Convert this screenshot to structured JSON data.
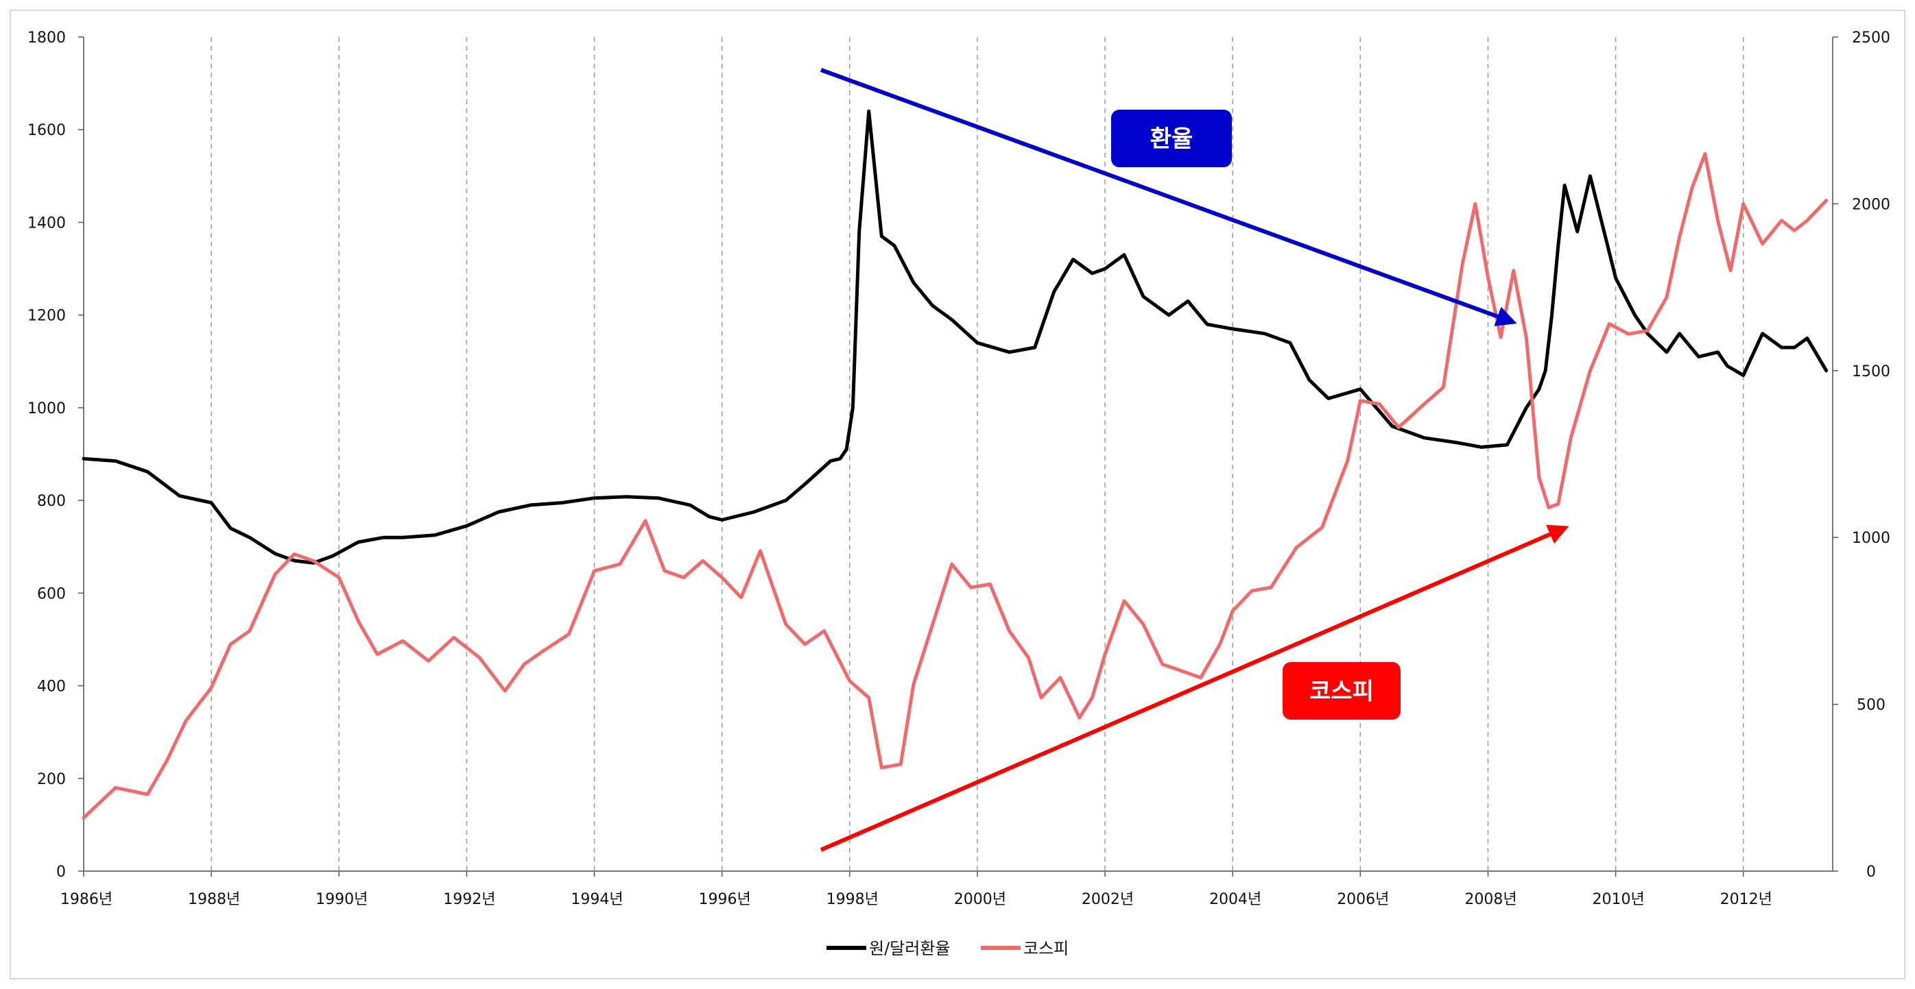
{
  "chart_data": {
    "type": "line",
    "title": "",
    "x_range": [
      1986,
      2013.4
    ],
    "x_ticks": [
      "1986년",
      "1988년",
      "1990년",
      "1992년",
      "1994년",
      "1996년",
      "1998년",
      "2000년",
      "2002년",
      "2004년",
      "2006년",
      "2008년",
      "2010년",
      "2012년"
    ],
    "y_left": {
      "range": [
        0,
        1800
      ],
      "ticks": [
        "0",
        "200",
        "400",
        "600",
        "800",
        "1000",
        "1200",
        "1400",
        "1600",
        "1800"
      ]
    },
    "y_right": {
      "range": [
        0,
        2500
      ],
      "ticks": [
        "0",
        "500",
        "1000",
        "1500",
        "2000",
        "2500"
      ]
    },
    "grid": "vertical-dashed",
    "legend_position": "bottom",
    "series": [
      {
        "name": "원/달러환율",
        "axis": "left",
        "color": "#000000",
        "x": [
          1986.0,
          1986.5,
          1987.0,
          1987.5,
          1988.0,
          1988.3,
          1988.6,
          1989.0,
          1989.3,
          1989.6,
          1989.9,
          1990.3,
          1990.7,
          1991.0,
          1991.5,
          1992.0,
          1992.5,
          1993.0,
          1993.5,
          1994.0,
          1994.5,
          1995.0,
          1995.5,
          1995.8,
          1996.0,
          1996.5,
          1997.0,
          1997.3,
          1997.5,
          1997.7,
          1997.85,
          1997.95,
          1998.05,
          1998.15,
          1998.3,
          1998.5,
          1998.7,
          1999.0,
          1999.3,
          1999.6,
          2000.0,
          2000.5,
          2000.9,
          2001.2,
          2001.5,
          2001.8,
          2002.0,
          2002.3,
          2002.6,
          2003.0,
          2003.3,
          2003.6,
          2004.0,
          2004.5,
          2004.9,
          2005.2,
          2005.5,
          2006.0,
          2006.5,
          2007.0,
          2007.5,
          2007.9,
          2008.3,
          2008.6,
          2008.8,
          2008.9,
          2009.0,
          2009.1,
          2009.2,
          2009.4,
          2009.6,
          2010.0,
          2010.3,
          2010.5,
          2010.8,
          2011.0,
          2011.3,
          2011.6,
          2011.75,
          2012.0,
          2012.3,
          2012.6,
          2012.8,
          2013.0,
          2013.3
        ],
        "y": [
          890,
          885,
          862,
          810,
          795,
          740,
          720,
          685,
          670,
          665,
          680,
          710,
          720,
          720,
          725,
          745,
          775,
          790,
          795,
          805,
          808,
          805,
          790,
          765,
          758,
          775,
          800,
          835,
          860,
          885,
          890,
          910,
          1000,
          1380,
          1640,
          1370,
          1350,
          1270,
          1220,
          1190,
          1140,
          1120,
          1130,
          1250,
          1320,
          1290,
          1300,
          1330,
          1240,
          1200,
          1230,
          1180,
          1170,
          1160,
          1140,
          1060,
          1020,
          1040,
          960,
          935,
          925,
          915,
          920,
          1000,
          1040,
          1080,
          1200,
          1350,
          1480,
          1380,
          1500,
          1280,
          1200,
          1160,
          1120,
          1160,
          1110,
          1120,
          1090,
          1070,
          1160,
          1130,
          1130,
          1150,
          1080
        ]
      },
      {
        "name": "코스피",
        "axis": "right",
        "color": "#ef6b6b",
        "x": [
          1986.0,
          1986.5,
          1987.0,
          1987.3,
          1987.6,
          1988.0,
          1988.3,
          1988.6,
          1989.0,
          1989.3,
          1989.6,
          1990.0,
          1990.3,
          1990.6,
          1991.0,
          1991.4,
          1991.8,
          1992.2,
          1992.6,
          1992.9,
          1993.2,
          1993.6,
          1994.0,
          1994.4,
          1994.8,
          1995.1,
          1995.4,
          1995.7,
          1996.0,
          1996.3,
          1996.6,
          1997.0,
          1997.3,
          1997.6,
          1998.0,
          1998.3,
          1998.5,
          1998.8,
          1999.0,
          1999.3,
          1999.6,
          1999.9,
          2000.2,
          2000.5,
          2000.8,
          2001.0,
          2001.3,
          2001.6,
          2001.8,
          2002.0,
          2002.3,
          2002.6,
          2002.9,
          2003.2,
          2003.5,
          2003.8,
          2004.0,
          2004.3,
          2004.6,
          2005.0,
          2005.4,
          2005.8,
          2006.0,
          2006.3,
          2006.6,
          2007.0,
          2007.3,
          2007.6,
          2007.8,
          2008.0,
          2008.2,
          2008.4,
          2008.6,
          2008.8,
          2008.95,
          2009.1,
          2009.3,
          2009.6,
          2009.9,
          2010.2,
          2010.5,
          2010.8,
          2011.0,
          2011.2,
          2011.4,
          2011.6,
          2011.8,
          2012.0,
          2012.3,
          2012.6,
          2012.8,
          2013.0,
          2013.3
        ],
        "y": [
          160,
          250,
          230,
          330,
          450,
          550,
          680,
          720,
          890,
          950,
          930,
          880,
          750,
          650,
          690,
          630,
          700,
          640,
          540,
          620,
          660,
          710,
          900,
          920,
          1050,
          900,
          880,
          930,
          880,
          820,
          960,
          740,
          680,
          720,
          570,
          520,
          310,
          320,
          560,
          740,
          920,
          850,
          860,
          720,
          640,
          520,
          580,
          460,
          520,
          650,
          810,
          740,
          620,
          600,
          580,
          680,
          780,
          840,
          850,
          970,
          1030,
          1230,
          1410,
          1400,
          1330,
          1400,
          1450,
          1820,
          2000,
          1780,
          1600,
          1800,
          1600,
          1180,
          1090,
          1100,
          1300,
          1500,
          1640,
          1610,
          1620,
          1720,
          1900,
          2050,
          2150,
          1950,
          1800,
          2000,
          1880,
          1950,
          1920,
          1950,
          2010
        ]
      }
    ],
    "annotations": [
      {
        "label": "환율",
        "color": "#0000cc"
      },
      {
        "label": "코스피",
        "color": "#ff0000"
      }
    ]
  }
}
